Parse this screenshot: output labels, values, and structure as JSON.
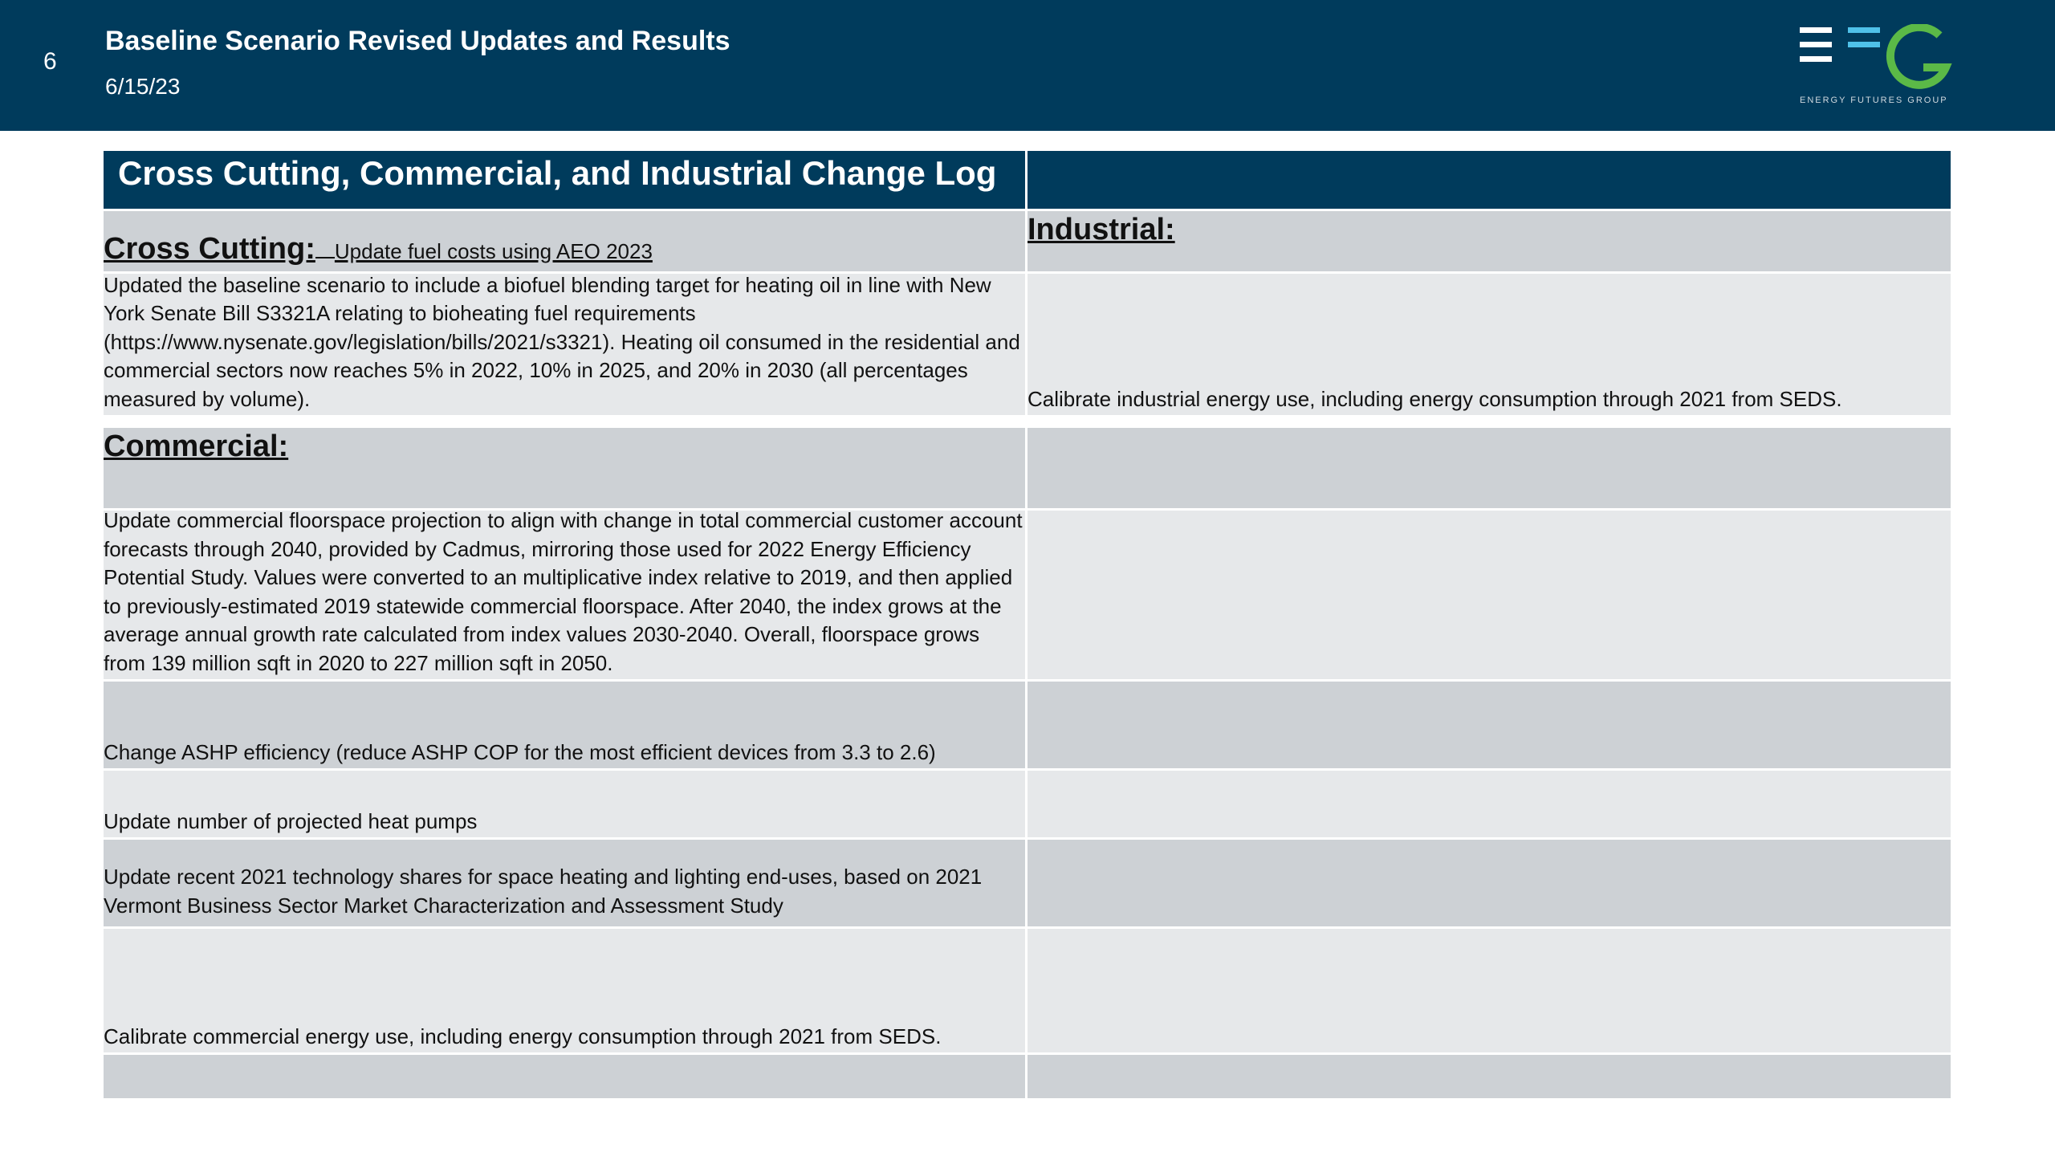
{
  "header": {
    "slide_number": "6",
    "title": "Baseline Scenario Revised Updates and Results",
    "date": "6/15/23",
    "logo_text": "ENERGY FUTURES GROUP",
    "colors": {
      "navy": "#003b5c",
      "logo_white": "#ffffff",
      "logo_blue": "#4fc1e9",
      "logo_green": "#5bb947"
    }
  },
  "table": {
    "title": "Cross Cutting, Commercial, and Industrial Change Log",
    "cross_cutting": {
      "heading": "Cross Cutting:",
      "note": "Update fuel costs using AEO 2023",
      "items": [
        "Updated the baseline scenario to include a biofuel blending target for heating oil in line with New York Senate Bill S3321A relating to bioheating fuel requirements (https://www.nysenate.gov/legislation/bills/2021/s3321). Heating oil consumed in the residential and commercial sectors now reaches 5% in 2022, 10% in 2025, and 20% in 2030 (all percentages measured by volume)."
      ]
    },
    "industrial": {
      "heading": "Industrial:",
      "items": [
        "Calibrate industrial energy use, including energy consumption through 2021 from SEDS."
      ]
    },
    "commercial": {
      "heading": "Commercial:",
      "items": [
        "Update commercial floorspace projection to align with change in total commercial customer account forecasts through 2040, provided by Cadmus, mirroring those used for 2022 Energy Efficiency Potential Study. Values were converted to an multiplicative index relative to 2019, and then applied to previously-estimated 2019 statewide commercial floorspace. After 2040, the index grows at the average annual growth rate calculated from index values 2030-2040. Overall, floorspace grows from 139 million sqft in 2020 to 227 million sqft in 2050.",
        "Change ASHP efficiency (reduce ASHP COP for the most efficient devices from 3.3 to 2.6)",
        "Update number of projected heat pumps",
        "Update recent 2021 technology shares for space heating and lighting end-uses, based on 2021 Vermont Business Sector Market Characterization and Assessment Study",
        "Calibrate commercial energy use, including energy consumption through 2021 from SEDS."
      ]
    }
  }
}
